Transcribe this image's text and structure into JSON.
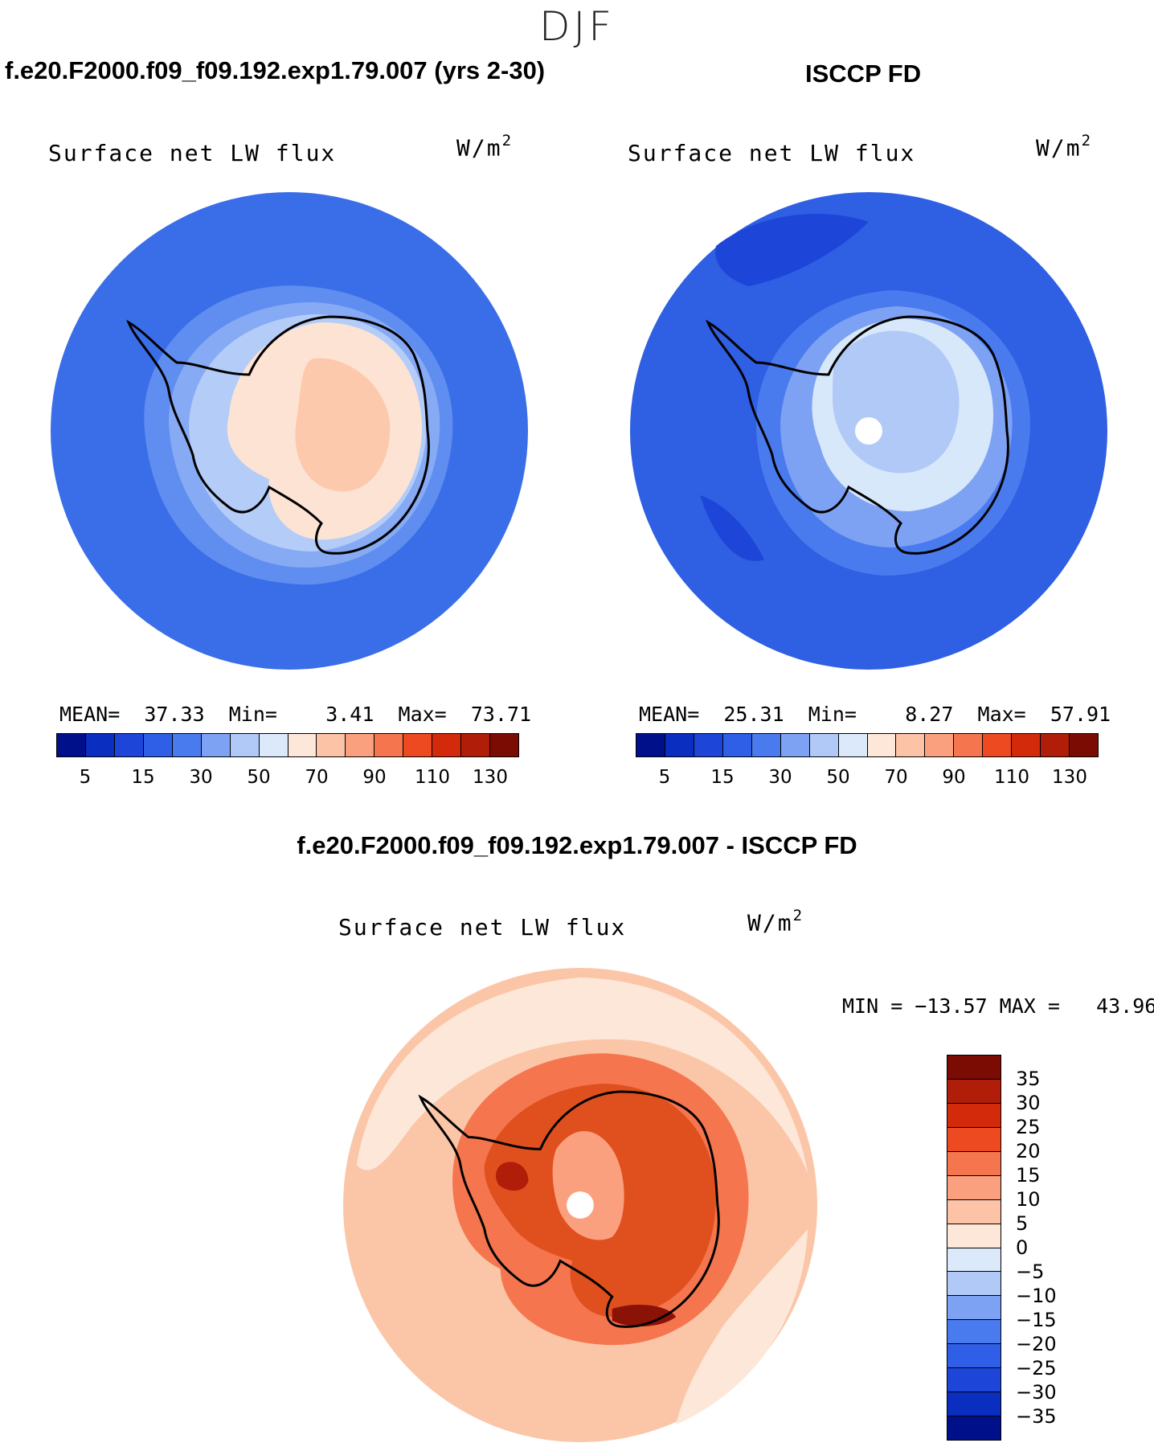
{
  "figure": {
    "season": "DJF"
  },
  "panels": {
    "model": {
      "title": "f.e20.F2000.f09_f09.192.exp1.79.007 (yrs 2-30)",
      "variable": "Surface net LW flux",
      "units": "W/m",
      "units_exp": "2",
      "stats": {
        "mean_label": "MEAN=",
        "mean": "37.33",
        "min_label": "Min=",
        "min": "3.41",
        "max_label": "Max=",
        "max": "73.71"
      },
      "ocean_color": "#3a6ee8",
      "ice_color": "#fde3d4"
    },
    "obs": {
      "title": "ISCCP FD",
      "variable": "Surface net LW flux",
      "units": "W/m",
      "units_exp": "2",
      "stats": {
        "mean_label": "MEAN=",
        "mean": "25.31",
        "min_label": "Min=",
        "min": "8.27",
        "max_label": "Max=",
        "max": "57.91"
      },
      "ocean_color": "#2f5fe2",
      "ice_color": "#d8e8fb"
    },
    "diff": {
      "title": "f.e20.F2000.f09_f09.192.exp1.79.007 - ISCCP FD",
      "variable": "Surface net LW flux",
      "units": "W/m",
      "units_exp": "2",
      "stats_text": "MIN = −13.57 MAX =   43.96",
      "ocean_color": "#fbc6a8",
      "ice_color": "#e0501f"
    }
  },
  "colorbar_abs": {
    "colors": [
      "#00108a",
      "#0a2ec0",
      "#1d46d8",
      "#2e5fe6",
      "#4a7bee",
      "#7ea2f3",
      "#b1c9f7",
      "#dbe9fb",
      "#fde7d9",
      "#fcc3a7",
      "#fba07e",
      "#f5764e",
      "#ee4a22",
      "#d42a0c",
      "#b01d08",
      "#7a0c04"
    ],
    "ticks": [
      "5",
      "15",
      "30",
      "50",
      "70",
      "90",
      "110",
      "130"
    ]
  },
  "colorbar_diff": {
    "colors": [
      "#7a0c04",
      "#b01d08",
      "#d42a0c",
      "#ee4a22",
      "#f5764e",
      "#fba07e",
      "#fcc3a7",
      "#fde7d9",
      "#dbe9fb",
      "#b1c9f7",
      "#7ea2f3",
      "#4a7bee",
      "#2e5fe6",
      "#1d46d8",
      "#0a2ec0",
      "#00108a"
    ],
    "ticks": [
      "35",
      "30",
      "25",
      "20",
      "15",
      "10",
      "5",
      "0",
      "−5",
      "−10",
      "−15",
      "−20",
      "−25",
      "−30",
      "−35"
    ]
  }
}
